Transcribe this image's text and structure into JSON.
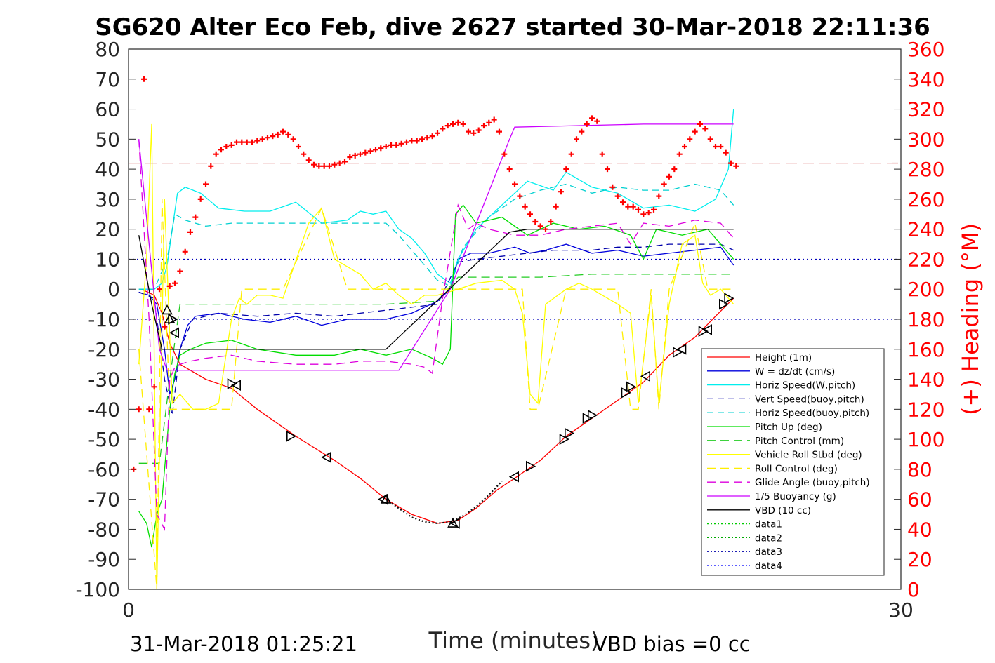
{
  "chart_data": {
    "type": "line",
    "title": "SG620 Alter Eco Feb, dive 2627 started 30-Mar-2018 22:11:36",
    "xlabel": "Time (minutes)",
    "ylabel": "",
    "y2label": "(+) Heading (°M)",
    "xlim": [
      0,
      30
    ],
    "ylim": [
      -100,
      80
    ],
    "y2lim": [
      0,
      360
    ],
    "xticks": [
      "0",
      "30"
    ],
    "yticks": [
      "80",
      "70",
      "60",
      "50",
      "40",
      "30",
      "20",
      "10",
      "0",
      "-10",
      "-20",
      "-30",
      "-40",
      "-50",
      "-60",
      "-70",
      "-80",
      "-90",
      "-100"
    ],
    "y2ticks": [
      "360",
      "340",
      "320",
      "300",
      "280",
      "260",
      "240",
      "220",
      "200",
      "180",
      "160",
      "140",
      "120",
      "100",
      "80",
      "60",
      "40",
      "20",
      "0"
    ],
    "bottom_left_text": "31-Mar-2018 01:25:21",
    "bottom_right_text": "VBD bias =0 cc",
    "legend_position": "bottom-right",
    "reference_lines": [
      {
        "name": "heading_target",
        "axis": "y2",
        "value": 284,
        "color": "#c00000",
        "style": "dashed"
      },
      {
        "name": "w_target_up",
        "axis": "y",
        "value": 10,
        "color": "#0000bb",
        "style": "dotted"
      },
      {
        "name": "w_target_down",
        "axis": "y",
        "value": -10,
        "color": "#0000bb",
        "style": "dotted"
      }
    ],
    "series": [
      {
        "name": "Height (1m)",
        "color": "#ff0000",
        "dash": "",
        "x": [
          0.5,
          1.0,
          1.3,
          1.6,
          2.0,
          3.0,
          4.0,
          5.0,
          6.5,
          8.0,
          9.0,
          10.0,
          11.0,
          12.0,
          12.8,
          13.5,
          14.3,
          15.0,
          16.0,
          17.0,
          18.0,
          19.0,
          20.0,
          21.0,
          22.0,
          22.8,
          23.5
        ],
        "y": [
          0,
          -2,
          -8,
          -18,
          -25,
          -30,
          -33,
          -40,
          -49,
          -57,
          -63,
          -70,
          -75,
          -78,
          -77,
          -73,
          -67,
          -63,
          -57,
          -49,
          -43,
          -37,
          -31,
          -22,
          -16,
          -9,
          -3
        ]
      },
      {
        "name": "W = dz/dt (cm/s)",
        "color": "#0000dd",
        "dash": "",
        "x": [
          0.4,
          0.8,
          1.1,
          1.4,
          1.6,
          1.8,
          2.0,
          2.3,
          2.6,
          3.5,
          4.5,
          5.5,
          6.5,
          7.5,
          8.5,
          9.5,
          10.0,
          11.0,
          12.0,
          12.5,
          12.8,
          13.3,
          14.0,
          15.0,
          15.6,
          16.2,
          17.0,
          18.0,
          19.0,
          20.0,
          21.0,
          22.0,
          23.0,
          23.5
        ],
        "y": [
          -1,
          -2,
          -5,
          -20,
          -35,
          -30,
          -20,
          -12,
          -9,
          -8,
          -10,
          -11,
          -9,
          -12,
          -10,
          -10,
          -10,
          -8,
          -4,
          0,
          10,
          12,
          12,
          14,
          12,
          13,
          15,
          12,
          13,
          11,
          12,
          13,
          14,
          8
        ]
      },
      {
        "name": "Horiz Speed(W,pitch)",
        "color": "#00eeee",
        "dash": "",
        "x": [
          0.4,
          1.0,
          1.3,
          1.5,
          1.7,
          1.9,
          2.2,
          2.8,
          3.5,
          4.5,
          5.5,
          6.5,
          7.5,
          8.5,
          9.0,
          9.5,
          10.0,
          10.5,
          11.0,
          11.5,
          12.0,
          12.5,
          12.8,
          13.5,
          14.5,
          15.5,
          16.5,
          17.0,
          18.0,
          19.0,
          20.0,
          21.0,
          22.0,
          22.8,
          23.3,
          23.5
        ],
        "y": [
          0,
          0,
          2,
          8,
          20,
          32,
          34,
          32,
          27,
          26,
          26,
          29,
          22,
          23,
          26,
          25,
          26,
          20,
          17,
          12,
          5,
          2,
          10,
          20,
          28,
          36,
          33,
          39,
          34,
          32,
          27,
          28,
          26,
          30,
          40,
          60
        ]
      },
      {
        "name": "Vert Speed(buoy,pitch)",
        "color": "#0000aa",
        "dash": "9,6",
        "x": [
          0.4,
          1.0,
          1.4,
          1.7,
          2.0,
          2.5,
          3.5,
          5.0,
          6.5,
          8.0,
          9.0,
          10.0,
          11.0,
          12.0,
          12.8,
          13.5,
          14.5,
          15.5,
          16.5,
          18.0,
          19.0,
          20.0,
          21.0,
          22.0,
          23.0,
          23.5
        ],
        "y": [
          -1,
          -3,
          -30,
          -42,
          -20,
          -10,
          -8,
          -9,
          -8,
          -9,
          -8,
          -7,
          -6,
          -5,
          9,
          10,
          11,
          12,
          13,
          13,
          14,
          14,
          15,
          15,
          15,
          13
        ]
      },
      {
        "name": "Horiz Speed(buoy,pitch)",
        "color": "#00d0d0",
        "dash": "9,6",
        "x": [
          0.4,
          1.0,
          1.5,
          1.8,
          2.2,
          3.0,
          4.0,
          5.0,
          6.5,
          8.0,
          9.0,
          10.0,
          10.5,
          11.0,
          11.5,
          12.0,
          12.5,
          13.0,
          14.0,
          15.0,
          16.0,
          17.0,
          18.0,
          19.0,
          20.0,
          21.0,
          22.0,
          23.0,
          23.5
        ],
        "y": [
          0,
          0,
          10,
          25,
          23,
          21,
          22,
          22,
          22,
          22,
          22,
          22,
          18,
          13,
          8,
          3,
          1,
          14,
          24,
          30,
          33,
          35,
          32,
          34,
          33,
          33,
          35,
          33,
          28
        ]
      },
      {
        "name": "Pitch Up (deg)",
        "color": "#00dd00",
        "dash": "",
        "x": [
          0.4,
          0.7,
          0.9,
          1.1,
          1.3,
          1.6,
          1.8,
          2.0,
          2.4,
          3.0,
          4.0,
          5.0,
          6.5,
          8.0,
          9.0,
          10.0,
          11.0,
          11.8,
          12.2,
          12.5,
          12.7,
          13.0,
          13.5,
          14.5,
          15.5,
          16.5,
          17.5,
          18.5,
          19.5,
          20.0,
          20.5,
          21.5,
          22.5,
          23.5
        ],
        "y": [
          -74,
          -78,
          -86,
          -75,
          -70,
          -40,
          -28,
          -22,
          -20,
          -18,
          -17,
          -20,
          -22,
          -22,
          -20,
          -22,
          -20,
          -23,
          -25,
          -20,
          25,
          28,
          22,
          24,
          18,
          22,
          20,
          21,
          18,
          10,
          20,
          18,
          20,
          10
        ]
      },
      {
        "name": "Pitch Control (mm)",
        "color": "#22cc22",
        "dash": "12,7",
        "x": [
          0.4,
          1.2,
          1.6,
          2.0,
          2.5,
          4.0,
          6.0,
          8.0,
          10.0,
          12.0,
          12.8,
          14.0,
          16.0,
          18.0,
          20.0,
          22.0,
          23.5
        ],
        "y": [
          -58,
          -58,
          -30,
          -5,
          -5,
          -5,
          -5,
          -5,
          -5,
          -4,
          4,
          4,
          4,
          5,
          5,
          5,
          5
        ]
      },
      {
        "name": "Vehicle Roll Stbd (deg)",
        "color": "#ffff00",
        "dash": "",
        "x": [
          0.4,
          0.7,
          0.9,
          1.1,
          1.4,
          1.7,
          2.0,
          2.5,
          3.0,
          3.5,
          4.0,
          4.3,
          4.6,
          5.0,
          5.5,
          6.0,
          7.0,
          7.5,
          8.0,
          9.0,
          9.5,
          10.0,
          10.5,
          11.0,
          11.5,
          12.0,
          12.8,
          13.5,
          14.5,
          15.0,
          15.3,
          15.6,
          15.9,
          16.2,
          17.0,
          17.5,
          18.0,
          19.0,
          19.5,
          19.8,
          20.3,
          20.6,
          21.0,
          21.5,
          22.0,
          22.3,
          22.6,
          23.0,
          23.5
        ],
        "y": [
          -25,
          10,
          55,
          -100,
          30,
          -38,
          -35,
          -40,
          -40,
          -38,
          -10,
          -3,
          -5,
          -2,
          -2,
          -3,
          22,
          27,
          10,
          5,
          0,
          2,
          -2,
          -5,
          -2,
          -2,
          0,
          2,
          3,
          0,
          -8,
          -35,
          -38,
          -5,
          0,
          2,
          0,
          -5,
          -8,
          -38,
          -2,
          -38,
          -5,
          15,
          18,
          2,
          -2,
          0,
          -5
        ]
      },
      {
        "name": "Roll Control (deg)",
        "color": "#ffee00",
        "dash": "12,7",
        "x": [
          0.4,
          1.1,
          1.3,
          1.6,
          2.0,
          3.0,
          4.0,
          4.4,
          5.0,
          6.0,
          7.5,
          8.5,
          9.5,
          10.0,
          11.0,
          12.0,
          12.5,
          12.8,
          14.0,
          15.0,
          15.3,
          15.6,
          15.9,
          17.0,
          18.0,
          19.0,
          19.5,
          19.8,
          20.3,
          20.6,
          21.0,
          22.0,
          22.5,
          23.0,
          23.5
        ],
        "y": [
          -20,
          -100,
          30,
          -40,
          -40,
          -40,
          -40,
          0,
          0,
          0,
          27,
          0,
          0,
          0,
          0,
          0,
          0,
          0,
          0,
          0,
          0,
          -40,
          -40,
          0,
          0,
          0,
          -40,
          -40,
          0,
          -40,
          0,
          22,
          0,
          0,
          0
        ]
      },
      {
        "name": "Glide Angle (buoy,pitch)",
        "color": "#dd00dd",
        "dash": "12,7",
        "x": [
          0.4,
          0.8,
          1.1,
          1.4,
          1.6,
          1.8,
          2.0,
          2.4,
          3.0,
          4.0,
          5.0,
          6.5,
          8.0,
          9.0,
          10.0,
          11.0,
          11.5,
          11.8,
          12.2,
          12.8,
          13.2,
          13.5,
          14.0,
          15.0,
          16.0,
          17.0,
          18.0,
          19.0,
          19.5,
          20.0,
          21.0,
          22.0,
          23.0,
          23.5
        ],
        "y": [
          50,
          -10,
          -75,
          -80,
          -30,
          -26,
          -25,
          -24,
          -23,
          -22,
          -24,
          -25,
          -25,
          -24,
          -24,
          -25,
          -26,
          -28,
          -3,
          28,
          20,
          22,
          20,
          18,
          18,
          20,
          21,
          22,
          15,
          22,
          21,
          23,
          22,
          17
        ]
      },
      {
        "name": "1/5 Buoyancy (g)",
        "color": "#cc00ff",
        "dash": "",
        "x": [
          0.4,
          1.2,
          1.5,
          2.0,
          6.0,
          10.0,
          10.5,
          12.5,
          14.8,
          15.0,
          20.0,
          23.5
        ],
        "y": [
          50,
          -20,
          -27,
          -27,
          -27,
          -27,
          -27,
          0,
          50,
          54,
          55,
          55
        ]
      },
      {
        "name": "VBD (10 cc)",
        "color": "#000000",
        "dash": "",
        "x": [
          0.4,
          0.9,
          1.3,
          4.0,
          8.0,
          9.5,
          10.0,
          12.7,
          14.8,
          15.5,
          20.0,
          23.5
        ],
        "y": [
          18,
          -5,
          -20,
          -20,
          -20,
          -20,
          -20,
          2,
          19,
          20,
          20,
          20
        ]
      },
      {
        "name": "data1",
        "color": "#00cc00",
        "dash": "2,3",
        "x": [],
        "y": []
      },
      {
        "name": "data2",
        "color": "#00aa00",
        "dash": "2,3",
        "x": [],
        "y": []
      },
      {
        "name": "data3",
        "color": "#0000aa",
        "dash": "2,3",
        "x": [],
        "y": []
      },
      {
        "name": "data4",
        "color": "#0000ff",
        "dash": "2,3",
        "x": [],
        "y": []
      }
    ],
    "depth_profile_dotted": {
      "x": [
        10.0,
        10.5,
        11.0,
        11.5,
        12.0,
        12.5,
        13.0,
        13.5,
        14.0,
        14.5
      ],
      "y": [
        -70,
        -73,
        -76,
        -77.5,
        -78,
        -77.5,
        -75.5,
        -72.5,
        -68.5,
        -64
      ]
    },
    "markers": [
      {
        "x": 1.5,
        "y": -7,
        "dir": "up"
      },
      {
        "x": 1.6,
        "y": -10,
        "dir": "up"
      },
      {
        "x": 1.7,
        "y": -10,
        "dir": "right"
      },
      {
        "x": 1.8,
        "y": -14.5,
        "dir": "left"
      },
      {
        "x": 4.0,
        "y": -31.5,
        "dir": "right"
      },
      {
        "x": 4.2,
        "y": -32,
        "dir": "left"
      },
      {
        "x": 6.3,
        "y": -49,
        "dir": "right"
      },
      {
        "x": 7.7,
        "y": -56,
        "dir": "left"
      },
      {
        "x": 9.9,
        "y": -70,
        "dir": "left"
      },
      {
        "x": 10.0,
        "y": -70,
        "dir": "up"
      },
      {
        "x": 12.6,
        "y": -78,
        "dir": "up"
      },
      {
        "x": 12.7,
        "y": -78,
        "dir": "left"
      },
      {
        "x": 15.0,
        "y": -62.5,
        "dir": "left"
      },
      {
        "x": 15.6,
        "y": -59,
        "dir": "right"
      },
      {
        "x": 16.9,
        "y": -50,
        "dir": "right"
      },
      {
        "x": 17.1,
        "y": -48,
        "dir": "right"
      },
      {
        "x": 17.8,
        "y": -43,
        "dir": "right"
      },
      {
        "x": 18.0,
        "y": -42,
        "dir": "right"
      },
      {
        "x": 19.3,
        "y": -34.5,
        "dir": "right"
      },
      {
        "x": 19.5,
        "y": -32.5,
        "dir": "right"
      },
      {
        "x": 20.1,
        "y": -29,
        "dir": "left"
      },
      {
        "x": 21.3,
        "y": -21,
        "dir": "right"
      },
      {
        "x": 21.5,
        "y": -20,
        "dir": "left"
      },
      {
        "x": 22.3,
        "y": -14,
        "dir": "right"
      },
      {
        "x": 22.5,
        "y": -13.5,
        "dir": "left"
      },
      {
        "x": 23.1,
        "y": -5,
        "dir": "right"
      },
      {
        "x": 23.3,
        "y": -3,
        "dir": "right"
      }
    ],
    "heading": {
      "x": [
        0.2,
        0.4,
        0.6,
        0.8,
        1.0,
        1.2,
        1.4,
        1.6,
        1.8,
        2.0,
        2.2,
        2.4,
        2.6,
        2.8,
        3.0,
        3.2,
        3.4,
        3.6,
        3.8,
        4.0,
        4.2,
        4.4,
        4.6,
        4.8,
        5.0,
        5.2,
        5.4,
        5.6,
        5.8,
        6.0,
        6.2,
        6.4,
        6.6,
        6.8,
        7.0,
        7.2,
        7.4,
        7.6,
        7.8,
        8.0,
        8.2,
        8.4,
        8.6,
        8.8,
        9.0,
        9.2,
        9.4,
        9.6,
        9.8,
        10.0,
        10.2,
        10.4,
        10.6,
        10.8,
        11.0,
        11.2,
        11.4,
        11.6,
        11.8,
        12.0,
        12.2,
        12.4,
        12.6,
        12.8,
        13.0,
        13.2,
        13.4,
        13.6,
        13.8,
        14.0,
        14.2,
        14.4,
        14.6,
        14.8,
        15.0,
        15.2,
        15.4,
        15.6,
        15.8,
        16.0,
        16.2,
        16.4,
        16.6,
        16.8,
        17.0,
        17.2,
        17.4,
        17.6,
        17.8,
        18.0,
        18.2,
        18.4,
        18.6,
        18.8,
        19.0,
        19.2,
        19.4,
        19.6,
        19.8,
        20.0,
        20.2,
        20.4,
        20.6,
        20.8,
        21.0,
        21.2,
        21.4,
        21.6,
        21.8,
        22.0,
        22.2,
        22.4,
        22.6,
        22.8,
        23.0,
        23.2,
        23.4,
        23.6
      ],
      "y": [
        80,
        120,
        340,
        120,
        135,
        200,
        175,
        202,
        204,
        212,
        225,
        238,
        248,
        260,
        270,
        282,
        290,
        293,
        295,
        296,
        298,
        298,
        298,
        298,
        299,
        300,
        301,
        302,
        303,
        305,
        303,
        300,
        295,
        290,
        286,
        283,
        282,
        282,
        282,
        283,
        284,
        285,
        288,
        289,
        290,
        291,
        292,
        293,
        294,
        295,
        296,
        296,
        297,
        298,
        299,
        299,
        300,
        301,
        302,
        304,
        307,
        309,
        310,
        311,
        310,
        305,
        304,
        306,
        309,
        311,
        313,
        305,
        290,
        280,
        270,
        262,
        255,
        250,
        245,
        242,
        240,
        245,
        255,
        265,
        280,
        290,
        300,
        305,
        310,
        314,
        312,
        290,
        280,
        268,
        262,
        258,
        255,
        255,
        253,
        250,
        251,
        253,
        262,
        270,
        275,
        280,
        290,
        295,
        300,
        305,
        310,
        307,
        300,
        295,
        295,
        291,
        284,
        282
      ]
    }
  }
}
